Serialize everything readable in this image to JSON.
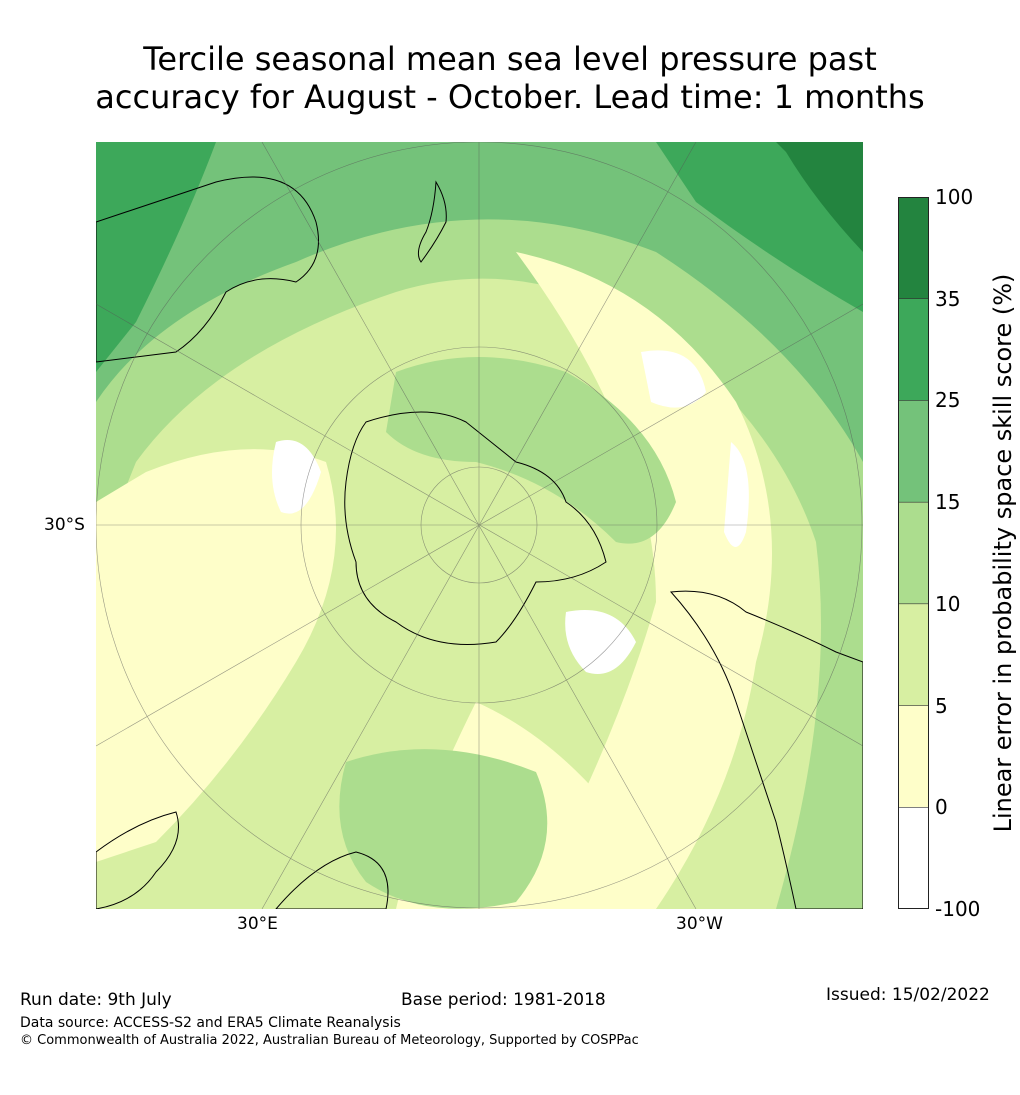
{
  "title_line1": "Tercile seasonal mean sea level pressure past",
  "title_line2": "accuracy for August - October. Lead time: 1 months",
  "map": {
    "lat_label": "30°S",
    "lon_labels": [
      "30°E",
      "30°W"
    ]
  },
  "colorbar": {
    "label": "Linear error in probability space skill score (%)",
    "ticks": [
      "100",
      "35",
      "25",
      "15",
      "10",
      "5",
      "0",
      "-100"
    ],
    "colors": [
      "#23843f",
      "#3da85a",
      "#74c27a",
      "#acdd8e",
      "#d7efa2",
      "#fefec9",
      "#ffffff"
    ]
  },
  "footer": {
    "run_date": "Run date: 9th July",
    "base_period": "Base period: 1981-2018",
    "issued": "Issued: 15/02/2022",
    "data_source": "Data source: ACCESS-S2 and ERA5 Climate Reanalysis",
    "copyright": "© Commonwealth of Australia 2022, Australian Bureau of Meteorology, Supported by COSPPac"
  }
}
